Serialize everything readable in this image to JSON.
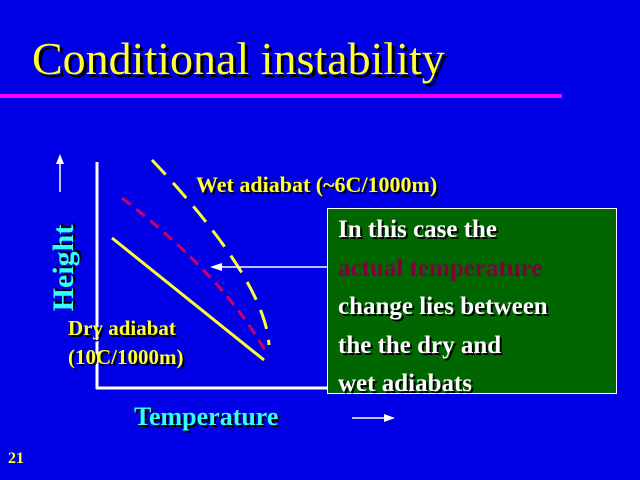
{
  "slide": {
    "title": "Conditional instability",
    "page_number": "21",
    "colors": {
      "background": "#0000e6",
      "title": "#ffff33",
      "rule": "#ff00ff",
      "axis_labels": "#33ffff",
      "note_box": "#006600",
      "highlight": "#800040",
      "actual_curve": "#cc0066"
    }
  },
  "diagram": {
    "wet_label": "Wet adiabat (~6C/1000m)",
    "dry_label_line1": "Dry adiabat",
    "dry_label_line2": "(10C/1000m)",
    "y_axis_label": "Height",
    "x_axis_label": "Temperature"
  },
  "note": {
    "line1": "In this case the",
    "line2": "actual temperature",
    "line3": "change lies between",
    "line4": "the the dry and",
    "line5": "wet adiabats"
  }
}
